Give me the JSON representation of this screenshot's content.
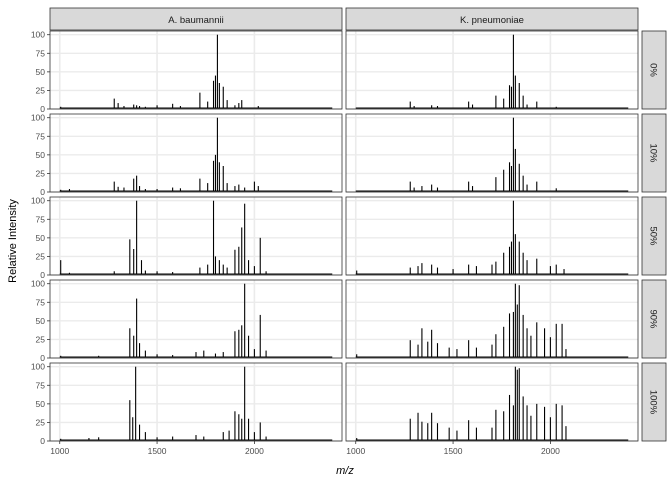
{
  "chart_data": {
    "type": "line",
    "facet_columns": [
      "A. baumannii",
      "K. pneumoniae"
    ],
    "facet_rows": [
      "0%",
      "10%",
      "50%",
      "90%",
      "100%"
    ],
    "xlabel": "m/z",
    "ylabel": "Relative Intensity",
    "xlim": [
      950,
      2450
    ],
    "ylim": [
      0,
      105
    ],
    "xticks": [
      1000,
      1500,
      2000
    ],
    "yticks": [
      0,
      25,
      50,
      75,
      100
    ],
    "grid": true,
    "panels": [
      {
        "row": "0%",
        "col": "A. baumannii",
        "peaks": [
          [
            1005,
            3
          ],
          [
            1100,
            2
          ],
          [
            1280,
            14
          ],
          [
            1300,
            8
          ],
          [
            1330,
            4
          ],
          [
            1380,
            6
          ],
          [
            1395,
            5
          ],
          [
            1410,
            4
          ],
          [
            1440,
            3
          ],
          [
            1500,
            5
          ],
          [
            1580,
            7
          ],
          [
            1620,
            4
          ],
          [
            1720,
            22
          ],
          [
            1760,
            10
          ],
          [
            1790,
            38
          ],
          [
            1800,
            45
          ],
          [
            1810,
            100
          ],
          [
            1820,
            35
          ],
          [
            1840,
            30
          ],
          [
            1860,
            12
          ],
          [
            1900,
            5
          ],
          [
            1920,
            8
          ],
          [
            1935,
            12
          ],
          [
            2020,
            4
          ]
        ]
      },
      {
        "row": "0%",
        "col": "K. pneumoniae",
        "peaks": [
          [
            1005,
            2
          ],
          [
            1280,
            10
          ],
          [
            1300,
            4
          ],
          [
            1390,
            5
          ],
          [
            1420,
            4
          ],
          [
            1580,
            10
          ],
          [
            1600,
            6
          ],
          [
            1720,
            18
          ],
          [
            1760,
            14
          ],
          [
            1790,
            32
          ],
          [
            1800,
            30
          ],
          [
            1810,
            100
          ],
          [
            1820,
            45
          ],
          [
            1840,
            35
          ],
          [
            1860,
            18
          ],
          [
            1880,
            6
          ],
          [
            1930,
            10
          ],
          [
            2030,
            3
          ]
        ]
      },
      {
        "row": "10%",
        "col": "A. baumannii",
        "peaks": [
          [
            1005,
            3
          ],
          [
            1050,
            4
          ],
          [
            1280,
            14
          ],
          [
            1300,
            7
          ],
          [
            1330,
            6
          ],
          [
            1380,
            18
          ],
          [
            1395,
            22
          ],
          [
            1410,
            8
          ],
          [
            1440,
            4
          ],
          [
            1500,
            4
          ],
          [
            1580,
            6
          ],
          [
            1620,
            5
          ],
          [
            1720,
            18
          ],
          [
            1760,
            12
          ],
          [
            1790,
            42
          ],
          [
            1800,
            50
          ],
          [
            1810,
            100
          ],
          [
            1820,
            40
          ],
          [
            1840,
            35
          ],
          [
            1860,
            12
          ],
          [
            1900,
            8
          ],
          [
            1920,
            10
          ],
          [
            1950,
            6
          ],
          [
            2000,
            14
          ],
          [
            2020,
            8
          ]
        ]
      },
      {
        "row": "10%",
        "col": "K. pneumoniae",
        "peaks": [
          [
            1005,
            2
          ],
          [
            1280,
            14
          ],
          [
            1300,
            6
          ],
          [
            1340,
            8
          ],
          [
            1390,
            10
          ],
          [
            1420,
            6
          ],
          [
            1580,
            14
          ],
          [
            1600,
            8
          ],
          [
            1720,
            20
          ],
          [
            1760,
            30
          ],
          [
            1790,
            40
          ],
          [
            1800,
            35
          ],
          [
            1810,
            100
          ],
          [
            1820,
            58
          ],
          [
            1840,
            38
          ],
          [
            1860,
            22
          ],
          [
            1880,
            10
          ],
          [
            1930,
            14
          ],
          [
            2030,
            5
          ]
        ]
      },
      {
        "row": "50%",
        "col": "A. baumannii",
        "peaks": [
          [
            1005,
            20
          ],
          [
            1050,
            3
          ],
          [
            1280,
            5
          ],
          [
            1360,
            48
          ],
          [
            1380,
            35
          ],
          [
            1395,
            100
          ],
          [
            1420,
            20
          ],
          [
            1440,
            6
          ],
          [
            1500,
            5
          ],
          [
            1580,
            4
          ],
          [
            1720,
            10
          ],
          [
            1760,
            14
          ],
          [
            1790,
            100
          ],
          [
            1800,
            25
          ],
          [
            1820,
            20
          ],
          [
            1840,
            14
          ],
          [
            1860,
            10
          ],
          [
            1900,
            34
          ],
          [
            1920,
            38
          ],
          [
            1935,
            64
          ],
          [
            1950,
            96
          ],
          [
            1970,
            20
          ],
          [
            2000,
            12
          ],
          [
            2030,
            50
          ],
          [
            2060,
            5
          ]
        ]
      },
      {
        "row": "50%",
        "col": "K. pneumoniae",
        "peaks": [
          [
            1005,
            6
          ],
          [
            1280,
            10
          ],
          [
            1320,
            12
          ],
          [
            1340,
            16
          ],
          [
            1390,
            14
          ],
          [
            1420,
            10
          ],
          [
            1500,
            8
          ],
          [
            1580,
            14
          ],
          [
            1620,
            12
          ],
          [
            1700,
            14
          ],
          [
            1720,
            18
          ],
          [
            1760,
            30
          ],
          [
            1790,
            38
          ],
          [
            1800,
            45
          ],
          [
            1810,
            100
          ],
          [
            1820,
            55
          ],
          [
            1840,
            45
          ],
          [
            1860,
            30
          ],
          [
            1880,
            20
          ],
          [
            1930,
            22
          ],
          [
            2000,
            12
          ],
          [
            2030,
            14
          ],
          [
            2070,
            8
          ]
        ]
      },
      {
        "row": "90%",
        "col": "A. baumannii",
        "peaks": [
          [
            1005,
            3
          ],
          [
            1050,
            2
          ],
          [
            1200,
            3
          ],
          [
            1360,
            40
          ],
          [
            1380,
            30
          ],
          [
            1395,
            80
          ],
          [
            1410,
            20
          ],
          [
            1440,
            10
          ],
          [
            1500,
            5
          ],
          [
            1580,
            4
          ],
          [
            1700,
            8
          ],
          [
            1740,
            10
          ],
          [
            1800,
            6
          ],
          [
            1840,
            8
          ],
          [
            1900,
            36
          ],
          [
            1920,
            38
          ],
          [
            1935,
            44
          ],
          [
            1950,
            100
          ],
          [
            1970,
            30
          ],
          [
            2000,
            12
          ],
          [
            2030,
            58
          ],
          [
            2060,
            10
          ]
        ]
      },
      {
        "row": "90%",
        "col": "K. pneumoniae",
        "peaks": [
          [
            1005,
            5
          ],
          [
            1280,
            24
          ],
          [
            1320,
            18
          ],
          [
            1340,
            40
          ],
          [
            1370,
            22
          ],
          [
            1390,
            38
          ],
          [
            1420,
            20
          ],
          [
            1480,
            14
          ],
          [
            1520,
            12
          ],
          [
            1580,
            24
          ],
          [
            1620,
            14
          ],
          [
            1700,
            18
          ],
          [
            1720,
            32
          ],
          [
            1760,
            42
          ],
          [
            1790,
            60
          ],
          [
            1810,
            62
          ],
          [
            1820,
            100
          ],
          [
            1830,
            72
          ],
          [
            1840,
            98
          ],
          [
            1860,
            58
          ],
          [
            1880,
            40
          ],
          [
            1900,
            30
          ],
          [
            1930,
            48
          ],
          [
            1970,
            40
          ],
          [
            2000,
            28
          ],
          [
            2030,
            46
          ],
          [
            2060,
            46
          ],
          [
            2080,
            12
          ]
        ]
      },
      {
        "row": "100%",
        "col": "A. baumannii",
        "peaks": [
          [
            1005,
            3
          ],
          [
            1150,
            4
          ],
          [
            1200,
            5
          ],
          [
            1360,
            55
          ],
          [
            1375,
            32
          ],
          [
            1390,
            100
          ],
          [
            1410,
            22
          ],
          [
            1440,
            12
          ],
          [
            1500,
            5
          ],
          [
            1580,
            6
          ],
          [
            1700,
            8
          ],
          [
            1740,
            6
          ],
          [
            1840,
            12
          ],
          [
            1870,
            14
          ],
          [
            1900,
            40
          ],
          [
            1920,
            36
          ],
          [
            1935,
            30
          ],
          [
            1950,
            100
          ],
          [
            1970,
            30
          ],
          [
            2000,
            12
          ],
          [
            2030,
            25
          ],
          [
            2060,
            6
          ]
        ]
      },
      {
        "row": "100%",
        "col": "K. pneumoniae",
        "peaks": [
          [
            1005,
            4
          ],
          [
            1280,
            30
          ],
          [
            1320,
            38
          ],
          [
            1340,
            26
          ],
          [
            1370,
            24
          ],
          [
            1390,
            38
          ],
          [
            1420,
            24
          ],
          [
            1480,
            18
          ],
          [
            1520,
            14
          ],
          [
            1580,
            28
          ],
          [
            1620,
            18
          ],
          [
            1700,
            18
          ],
          [
            1720,
            42
          ],
          [
            1760,
            40
          ],
          [
            1790,
            62
          ],
          [
            1810,
            48
          ],
          [
            1820,
            100
          ],
          [
            1830,
            96
          ],
          [
            1840,
            98
          ],
          [
            1860,
            60
          ],
          [
            1880,
            48
          ],
          [
            1900,
            34
          ],
          [
            1930,
            50
          ],
          [
            1970,
            46
          ],
          [
            2000,
            32
          ],
          [
            2030,
            50
          ],
          [
            2060,
            48
          ],
          [
            2080,
            20
          ]
        ]
      }
    ]
  },
  "colors": {
    "strip_fill": "#d9d9d9",
    "grid": "#ebebeb",
    "spectrum": "#000000",
    "text": "#1a1a1a",
    "tick_label": "#4d4d4d"
  }
}
